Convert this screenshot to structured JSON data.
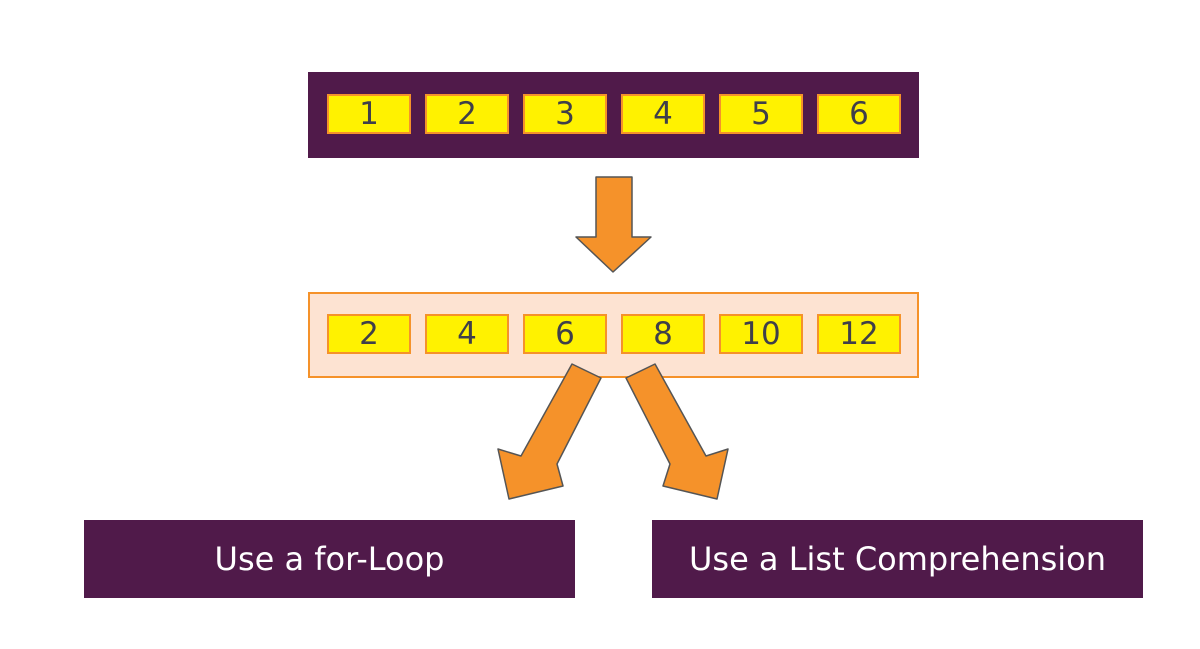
{
  "colors": {
    "dark": "#501a4a",
    "yellow": "#fff200",
    "orange": "#f5922a",
    "peach": "#fde3d2"
  },
  "input_list": {
    "values": [
      "1",
      "2",
      "3",
      "4",
      "5",
      "6"
    ]
  },
  "output_list": {
    "values": [
      "2",
      "4",
      "6",
      "8",
      "10",
      "12"
    ]
  },
  "options": {
    "left_label": "Use a for-Loop",
    "right_label": "Use a List Comprehension"
  },
  "icons": [
    "arrow-down-icon",
    "arrow-down-left-icon",
    "arrow-down-right-icon"
  ]
}
